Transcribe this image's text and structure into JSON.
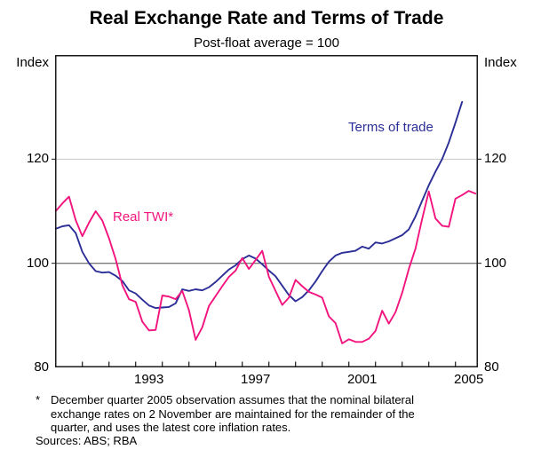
{
  "title": "Real Exchange Rate and Terms of Trade",
  "subtitle": "Post-float average = 100",
  "axis": {
    "unit_left": "Index",
    "unit_right": "Index"
  },
  "labels": {
    "terms_of_trade": "Terms of trade",
    "real_twi": "Real TWI*"
  },
  "footnote": {
    "marker": "*",
    "lines": [
      "December quarter 2005 observation assumes that the nominal bilateral",
      "exchange rates on 2 November are maintained for the remainder of the",
      "quarter, and uses the latest core inflation rates."
    ],
    "sources": "Sources: ABS; RBA"
  },
  "chart_data": {
    "type": "line",
    "title": "Real Exchange Rate and Terms of Trade",
    "subtitle": "Post-float average = 100",
    "frequency": "quarterly",
    "x_start": 1990.0,
    "x_step": 0.25,
    "xlim": [
      1989.98,
      2005.87
    ],
    "ylim": [
      80,
      140
    ],
    "y_ticks": [
      80,
      100,
      120
    ],
    "y_unit": "Index",
    "grid": "horizontal-only",
    "gridlines": [
      {
        "value": 120,
        "color": "#C9C9C9",
        "width": 1
      },
      {
        "value": 100,
        "color": "#7A7A7A",
        "width": 1.3
      }
    ],
    "x_tick_years": [
      1991,
      1992,
      1993,
      1994,
      1995,
      1996,
      1997,
      1998,
      1999,
      2000,
      2001,
      2002,
      2003,
      2004,
      2005
    ],
    "x_tick_labels": [
      1993,
      1997,
      2001,
      2005
    ],
    "frame_color": "#1A1A1A",
    "legend_position": "in-plot-text-labels",
    "series": [
      {
        "name": "Terms of trade",
        "color": "#2B2E96",
        "start": 1990.0,
        "end": 2005.25,
        "values": [
          106.6,
          107.1,
          107.3,
          105.8,
          102.2,
          100.0,
          98.5,
          98.2,
          98.3,
          97.6,
          96.6,
          94.8,
          94.2,
          93.0,
          91.9,
          91.4,
          91.5,
          91.6,
          92.3,
          95.0,
          94.7,
          95.0,
          94.8,
          95.4,
          96.4,
          97.6,
          98.8,
          99.6,
          100.8,
          101.5,
          100.9,
          99.8,
          98.6,
          97.5,
          95.7,
          93.9,
          92.7,
          93.5,
          94.8,
          96.5,
          98.5,
          100.3,
          101.5,
          102.0,
          102.2,
          102.4,
          103.2,
          102.8,
          104.0,
          103.8,
          104.2,
          104.8,
          105.4,
          106.5,
          109.0,
          112.0,
          115.0,
          117.6,
          120.0,
          123.2,
          127.0,
          131.0
        ]
      },
      {
        "name": "Real TWI*",
        "color": "#F2147E",
        "start": 1990.0,
        "end": 2005.75,
        "values": [
          110.0,
          111.5,
          112.8,
          108.3,
          105.2,
          107.8,
          110.0,
          108.2,
          104.8,
          100.8,
          95.8,
          93.1,
          92.6,
          88.8,
          87.1,
          87.2,
          93.8,
          93.6,
          93.1,
          94.7,
          91.0,
          85.3,
          87.7,
          91.8,
          93.7,
          95.6,
          97.4,
          98.6,
          101.0,
          98.9,
          100.6,
          102.4,
          97.4,
          94.7,
          92.0,
          93.4,
          96.8,
          95.6,
          94.5,
          94.0,
          93.4,
          89.8,
          88.5,
          84.6,
          85.4,
          84.9,
          84.9,
          85.5,
          87.0,
          90.9,
          88.4,
          90.6,
          94.3,
          98.9,
          102.8,
          108.5,
          113.8,
          108.6,
          107.2,
          107.0,
          112.4,
          113.1,
          113.9,
          113.4
        ]
      }
    ]
  }
}
